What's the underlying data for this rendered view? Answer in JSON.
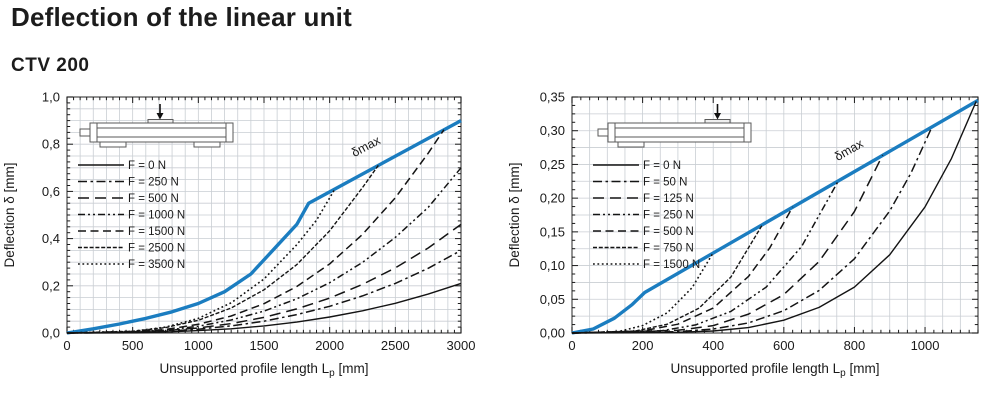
{
  "title": "Deflection of the linear unit",
  "subtitle": "CTV 200",
  "colors": {
    "accent_blue": "#1b7dc0",
    "grid": "#c9ced3",
    "axis": "#1a1a1a",
    "border": "#4a4a4a",
    "curve_black": "#141414",
    "inset_stroke": "#5a5a5a"
  },
  "chart_data": [
    {
      "type": "line",
      "name": "ctv-200-center-load-deflection",
      "xlabel": {
        "pre": "Unsupported profile length L",
        "sub": "p",
        "post": " [mm]"
      },
      "ylabel": "Deflection δ [mm]",
      "xlim": [
        0,
        3000
      ],
      "ylim": [
        0,
        1.0
      ],
      "x_ticks": [
        [
          0,
          "0"
        ],
        [
          500,
          "500"
        ],
        [
          1000,
          "1000"
        ],
        [
          1500,
          "1500"
        ],
        [
          2000,
          "2000"
        ],
        [
          2500,
          "2500"
        ],
        [
          3000,
          "3000"
        ]
      ],
      "y_ticks": [
        [
          0,
          "0,0"
        ],
        [
          0.2,
          "0,2"
        ],
        [
          0.4,
          "0,4"
        ],
        [
          0.6,
          "0,6"
        ],
        [
          0.8,
          "0,8"
        ],
        [
          1,
          "1,0"
        ]
      ],
      "x_grid": 100,
      "y_grid": 0.05,
      "x_tick_minor": 50,
      "y_tick_minor": 0.025,
      "grid_on": true,
      "legend_position": "upper-left",
      "dmax": {
        "text": "δmax",
        "x": 2290,
        "y": 0.775,
        "angle": -28
      },
      "inset_icon": "linear-unit-center-load-diagram",
      "series": [
        {
          "name": "δmax",
          "role": "envelope",
          "color": "blue",
          "width": 3.4,
          "dash": null,
          "points": [
            [
              0,
              0
            ],
            [
              200,
              0.018
            ],
            [
              400,
              0.038
            ],
            [
              600,
              0.062
            ],
            [
              800,
              0.09
            ],
            [
              1000,
              0.125
            ],
            [
              1200,
              0.175
            ],
            [
              1400,
              0.25
            ],
            [
              1600,
              0.37
            ],
            [
              1750,
              0.46
            ],
            [
              1840,
              0.55
            ],
            [
              3000,
              0.9
            ]
          ]
        },
        {
          "name": "F = 0 N",
          "color": "black",
          "width": 1.4,
          "dash": null,
          "points": [
            [
              0,
              0
            ],
            [
              500,
              0.001
            ],
            [
              750,
              0.004
            ],
            [
              1000,
              0.01
            ],
            [
              1250,
              0.018
            ],
            [
              1500,
              0.03
            ],
            [
              1750,
              0.046
            ],
            [
              2000,
              0.068
            ],
            [
              2250,
              0.094
            ],
            [
              2500,
              0.126
            ],
            [
              2750,
              0.165
            ],
            [
              3000,
              0.21
            ]
          ]
        },
        {
          "name": "F = 250 N",
          "color": "black",
          "width": 1.5,
          "dash": "9 3.5 2.5 3.5",
          "points": [
            [
              0,
              0
            ],
            [
              500,
              0.002
            ],
            [
              750,
              0.007
            ],
            [
              1000,
              0.016
            ],
            [
              1250,
              0.03
            ],
            [
              1500,
              0.05
            ],
            [
              1750,
              0.078
            ],
            [
              2000,
              0.113
            ],
            [
              2250,
              0.157
            ],
            [
              2500,
              0.21
            ],
            [
              2750,
              0.274
            ],
            [
              3000,
              0.35
            ]
          ]
        },
        {
          "name": "F = 500 N",
          "color": "black",
          "width": 1.5,
          "dash": "11 6",
          "points": [
            [
              0,
              0
            ],
            [
              500,
              0.003
            ],
            [
              750,
              0.01
            ],
            [
              1000,
              0.021
            ],
            [
              1250,
              0.04
            ],
            [
              1500,
              0.066
            ],
            [
              1750,
              0.102
            ],
            [
              2000,
              0.148
            ],
            [
              2250,
              0.206
            ],
            [
              2500,
              0.276
            ],
            [
              2750,
              0.36
            ],
            [
              3000,
              0.46
            ]
          ]
        },
        {
          "name": "F = 1000 N",
          "color": "black",
          "width": 1.5,
          "dash": "7 3 2 3 2 3",
          "points": [
            [
              0,
              0
            ],
            [
              500,
              0.004
            ],
            [
              750,
              0.012
            ],
            [
              1000,
              0.029
            ],
            [
              1250,
              0.055
            ],
            [
              1500,
              0.093
            ],
            [
              1750,
              0.145
            ],
            [
              2000,
              0.213
            ],
            [
              2250,
              0.299
            ],
            [
              2500,
              0.405
            ],
            [
              2750,
              0.532
            ],
            [
              3000,
              0.7
            ]
          ]
        },
        {
          "name": "F = 1500 N",
          "color": "black",
          "width": 1.5,
          "dash": "8 4.5",
          "points": [
            [
              0,
              0
            ],
            [
              500,
              0.005
            ],
            [
              750,
              0.015
            ],
            [
              1000,
              0.037
            ],
            [
              1250,
              0.072
            ],
            [
              1500,
              0.124
            ],
            [
              1750,
              0.197
            ],
            [
              2000,
              0.293
            ],
            [
              2250,
              0.418
            ],
            [
              2500,
              0.573
            ],
            [
              2750,
              0.762
            ],
            [
              2870,
              0.861
            ]
          ]
        },
        {
          "name": "F = 2500 N",
          "color": "black",
          "width": 1.4,
          "dash": "4 1.8",
          "points": [
            [
              0,
              0
            ],
            [
              500,
              0.007
            ],
            [
              750,
              0.023
            ],
            [
              1000,
              0.054
            ],
            [
              1250,
              0.106
            ],
            [
              1500,
              0.183
            ],
            [
              1750,
              0.29
            ],
            [
              2000,
              0.433
            ],
            [
              2250,
              0.616
            ],
            [
              2370,
              0.71
            ]
          ]
        },
        {
          "name": "F = 3500 N",
          "color": "black",
          "width": 1.6,
          "dash": "1.8 2.6",
          "points": [
            [
              0,
              0
            ],
            [
              500,
              0.007
            ],
            [
              750,
              0.025
            ],
            [
              1000,
              0.062
            ],
            [
              1250,
              0.128
            ],
            [
              1500,
              0.229
            ],
            [
              1750,
              0.374
            ],
            [
              1900,
              0.478
            ],
            [
              2040,
              0.61
            ]
          ]
        }
      ]
    },
    {
      "type": "line",
      "name": "ctv-200-end-load-deflection",
      "xlabel": {
        "pre": "Unsupported profile length L",
        "sub": "p",
        "post": " [mm]"
      },
      "ylabel": "Deflection δ [mm]",
      "xlim": [
        0,
        1150
      ],
      "ylim": [
        0,
        0.35
      ],
      "x_ticks": [
        [
          0,
          "0"
        ],
        [
          200,
          "200"
        ],
        [
          400,
          "400"
        ],
        [
          600,
          "600"
        ],
        [
          800,
          "800"
        ],
        [
          1000,
          "1000"
        ]
      ],
      "y_ticks": [
        [
          0,
          "0,00"
        ],
        [
          0.05,
          "0,05"
        ],
        [
          0.1,
          "0,10"
        ],
        [
          0.15,
          "0,15"
        ],
        [
          0.2,
          "0,20"
        ],
        [
          0.25,
          "0,25"
        ],
        [
          0.3,
          "0,30"
        ],
        [
          0.35,
          "0,35"
        ]
      ],
      "x_grid": 50,
      "y_grid": 0.025,
      "x_tick_minor": 25,
      "y_tick_minor": 0.0125,
      "grid_on": true,
      "legend_position": "upper-left",
      "dmax": {
        "text": "δmax",
        "x": 790,
        "y": 0.266,
        "angle": -30
      },
      "inset_icon": "linear-unit-end-load-diagram",
      "series": [
        {
          "name": "δmax",
          "role": "envelope",
          "color": "blue",
          "width": 3.4,
          "dash": null,
          "points": [
            [
              0,
              0
            ],
            [
              60,
              0.006
            ],
            [
              120,
              0.022
            ],
            [
              170,
              0.042
            ],
            [
              206,
              0.06
            ],
            [
              1150,
              0.345
            ]
          ]
        },
        {
          "name": "F = 0 N",
          "color": "black",
          "width": 1.4,
          "dash": null,
          "points": [
            [
              0,
              0
            ],
            [
              300,
              0.001
            ],
            [
              400,
              0.003
            ],
            [
              500,
              0.008
            ],
            [
              600,
              0.019
            ],
            [
              700,
              0.038
            ],
            [
              800,
              0.068
            ],
            [
              900,
              0.116
            ],
            [
              1000,
              0.187
            ],
            [
              1075,
              0.259
            ],
            [
              1145,
              0.3435
            ]
          ]
        },
        {
          "name": "F = 50 N",
          "color": "black",
          "width": 1.5,
          "dash": "9 3.5 2.5 3.5",
          "points": [
            [
              0,
              0
            ],
            [
              300,
              0.002
            ],
            [
              400,
              0.006
            ],
            [
              500,
              0.015
            ],
            [
              600,
              0.033
            ],
            [
              700,
              0.063
            ],
            [
              800,
              0.11
            ],
            [
              900,
              0.181
            ],
            [
              960,
              0.237
            ],
            [
              1020,
              0.306
            ]
          ]
        },
        {
          "name": "F = 125 N",
          "color": "black",
          "width": 1.5,
          "dash": "11 6",
          "points": [
            [
              0,
              0
            ],
            [
              300,
              0.004
            ],
            [
              400,
              0.011
            ],
            [
              500,
              0.028
            ],
            [
              600,
              0.057
            ],
            [
              700,
              0.106
            ],
            [
              800,
              0.18
            ],
            [
              880,
              0.264
            ]
          ]
        },
        {
          "name": "F = 250 N",
          "color": "black",
          "width": 1.5,
          "dash": "7 3 2 3 2 3",
          "points": [
            [
              0,
              0
            ],
            [
              250,
              0.003
            ],
            [
              350,
              0.012
            ],
            [
              450,
              0.032
            ],
            [
              550,
              0.068
            ],
            [
              650,
              0.128
            ],
            [
              755,
              0.226
            ]
          ]
        },
        {
          "name": "F = 500 N",
          "color": "black",
          "width": 1.5,
          "dash": "8 4.5",
          "points": [
            [
              0,
              0
            ],
            [
              200,
              0.003
            ],
            [
              300,
              0.013
            ],
            [
              400,
              0.037
            ],
            [
              500,
              0.084
            ],
            [
              560,
              0.126
            ],
            [
              625,
              0.187
            ]
          ]
        },
        {
          "name": "F = 750 N",
          "color": "black",
          "width": 1.4,
          "dash": "4 1.8",
          "points": [
            [
              0,
              0
            ],
            [
              180,
              0.003
            ],
            [
              270,
              0.013
            ],
            [
              360,
              0.037
            ],
            [
              450,
              0.083
            ],
            [
              540,
              0.161
            ]
          ]
        },
        {
          "name": "F = 1500 N",
          "color": "black",
          "width": 1.6,
          "dash": "1.8 2.6",
          "points": [
            [
              0,
              0
            ],
            [
              130,
              0.002
            ],
            [
              200,
              0.011
            ],
            [
              270,
              0.03
            ],
            [
              340,
              0.067
            ],
            [
              400,
              0.119
            ]
          ]
        }
      ]
    }
  ]
}
